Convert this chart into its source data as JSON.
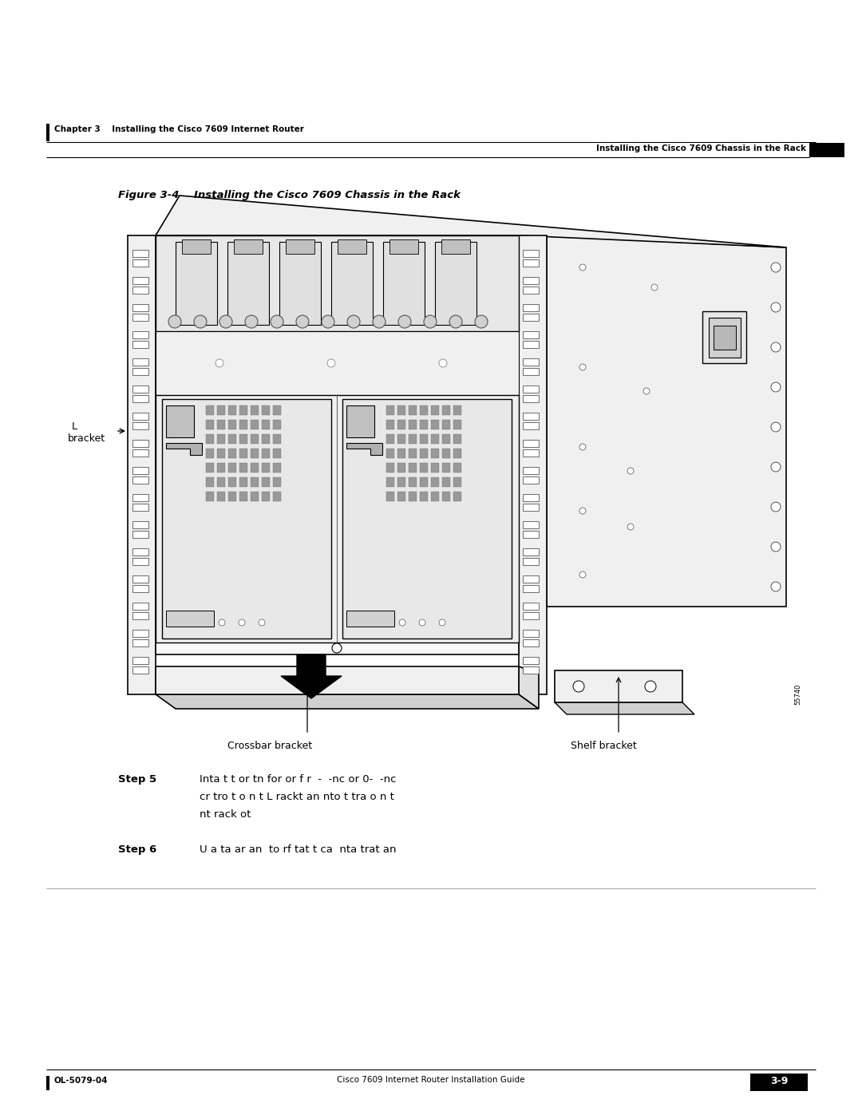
{
  "bg_color": "#ffffff",
  "page_width": 10.8,
  "page_height": 13.97,
  "header_left_text": "Chapter 3    Installing the Cisco 7609 Internet Router",
  "header_right_text": "Installing the Cisco 7609 Chassis in the Rack",
  "footer_left_text": "OL-5079-04",
  "footer_right_text": "3-9",
  "footer_center_text": "Cisco 7609 Internet Router Installation Guide",
  "figure_title": "Figure 3-4    Installing the Cisco 7609 Chassis in the Rack",
  "step5_label": "Step 5",
  "step5_text_line1": "Inta t t or tn for or f r  -  -nc or 0-  -nc",
  "step5_text_line2": "cr tro t o n t L rackt an nto t tra o n t",
  "step5_text_line3": "nt rack ot",
  "step6_label": "Step 6",
  "step6_text": "U a ta ar an  to rf tat t ca  nta trat an",
  "crossbar_label": "Crossbar bracket",
  "shelf_label": "Shelf bracket",
  "black_color": "#000000",
  "white_color": "#ffffff",
  "light_gray": "#f0f0f0",
  "mid_gray": "#d0d0d0",
  "dark_gray": "#888888"
}
